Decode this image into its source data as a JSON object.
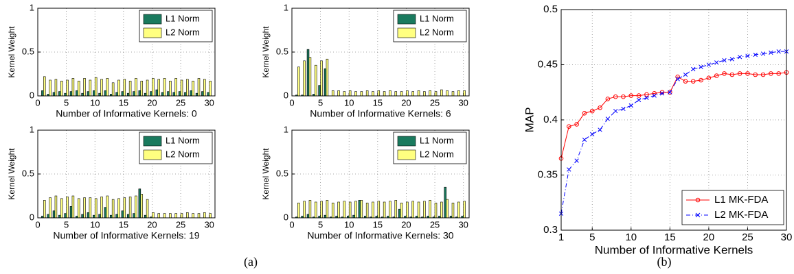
{
  "captions": [
    "(a)",
    "(b)"
  ],
  "chart_data": [
    {
      "type": "bar",
      "xlabel": "Number of Informative Kernels: 0",
      "ylabel": "Kernel Weight",
      "x": [
        1,
        2,
        3,
        4,
        5,
        6,
        7,
        8,
        9,
        10,
        11,
        12,
        13,
        14,
        15,
        16,
        17,
        18,
        19,
        20,
        21,
        22,
        23,
        24,
        25,
        26,
        27,
        28,
        29,
        30
      ],
      "xlim": [
        0,
        31
      ],
      "xticks": [
        0,
        5,
        10,
        15,
        20,
        25,
        30
      ],
      "ylim": [
        0,
        1
      ],
      "yticks": [
        0,
        0.5,
        1
      ],
      "grid": true,
      "legend": "upper right",
      "series": [
        {
          "name": "L1 Norm",
          "color": "#1a7a5e",
          "values": [
            0.06,
            0.02,
            0.04,
            0.05,
            0.03,
            0.05,
            0.06,
            0.03,
            0.05,
            0.06,
            0.03,
            0.06,
            0.02,
            0.04,
            0.05,
            0.03,
            0.05,
            0.06,
            0.03,
            0.05,
            0.07,
            0.04,
            0.05,
            0.04,
            0.05,
            0.04,
            0.06,
            0.03,
            0.05,
            0.04
          ]
        },
        {
          "name": "L2 Norm",
          "color": "#ffff80",
          "values": [
            0.22,
            0.18,
            0.19,
            0.17,
            0.18,
            0.2,
            0.17,
            0.2,
            0.18,
            0.21,
            0.19,
            0.2,
            0.15,
            0.18,
            0.19,
            0.17,
            0.2,
            0.17,
            0.18,
            0.2,
            0.19,
            0.2,
            0.17,
            0.2,
            0.18,
            0.19,
            0.17,
            0.2,
            0.19,
            0.17
          ]
        }
      ]
    },
    {
      "type": "bar",
      "xlabel": "Number of Informative Kernels: 6",
      "ylabel": "Kernel Weight",
      "x": [
        1,
        2,
        3,
        4,
        5,
        6,
        7,
        8,
        9,
        10,
        11,
        12,
        13,
        14,
        15,
        16,
        17,
        18,
        19,
        20,
        21,
        22,
        23,
        24,
        25,
        26,
        27,
        28,
        29,
        30
      ],
      "xlim": [
        0,
        31
      ],
      "xticks": [
        0,
        5,
        10,
        15,
        20,
        25,
        30
      ],
      "ylim": [
        0,
        1
      ],
      "yticks": [
        0,
        0.5,
        1
      ],
      "grid": true,
      "legend": "upper right",
      "series": [
        {
          "name": "L1 Norm",
          "color": "#1a7a5e",
          "values": [
            0.01,
            0.01,
            0.53,
            0.02,
            0.12,
            0.31,
            0,
            0,
            0,
            0,
            0,
            0,
            0,
            0,
            0,
            0,
            0,
            0,
            0,
            0,
            0,
            0,
            0,
            0,
            0,
            0,
            0,
            0,
            0,
            0
          ]
        },
        {
          "name": "L2 Norm",
          "color": "#ffff80",
          "values": [
            0.33,
            0.4,
            0.44,
            0.35,
            0.4,
            0.42,
            0.06,
            0.06,
            0.05,
            0.06,
            0.05,
            0.05,
            0.06,
            0.05,
            0.06,
            0.05,
            0.06,
            0.05,
            0.05,
            0.06,
            0.05,
            0.06,
            0.05,
            0.06,
            0.05,
            0.07,
            0.06,
            0.05,
            0.06,
            0.06
          ]
        }
      ]
    },
    {
      "type": "bar",
      "xlabel": "Number of Informative Kernels: 19",
      "ylabel": "Kernel Weight",
      "x": [
        1,
        2,
        3,
        4,
        5,
        6,
        7,
        8,
        9,
        10,
        11,
        12,
        13,
        14,
        15,
        16,
        17,
        18,
        19,
        20,
        21,
        22,
        23,
        24,
        25,
        26,
        27,
        28,
        29,
        30
      ],
      "xlim": [
        0,
        31
      ],
      "xticks": [
        0,
        5,
        10,
        15,
        20,
        25,
        30
      ],
      "ylim": [
        0,
        1
      ],
      "yticks": [
        0,
        0.5,
        1
      ],
      "grid": true,
      "legend": "upper right",
      "series": [
        {
          "name": "L1 Norm",
          "color": "#1a7a5e",
          "values": [
            0.02,
            0.04,
            0.08,
            0.03,
            0.05,
            0.13,
            0.02,
            0.04,
            0.06,
            0.03,
            0.04,
            0.12,
            0.03,
            0.04,
            0.08,
            0.04,
            0.05,
            0.33,
            0.03,
            0.01,
            0,
            0,
            0,
            0,
            0,
            0,
            0,
            0,
            0,
            0
          ]
        },
        {
          "name": "L2 Norm",
          "color": "#ffff80",
          "values": [
            0.2,
            0.23,
            0.25,
            0.22,
            0.24,
            0.25,
            0.22,
            0.23,
            0.23,
            0.22,
            0.24,
            0.25,
            0.21,
            0.22,
            0.23,
            0.24,
            0.25,
            0.27,
            0.21,
            0.06,
            0.05,
            0.05,
            0.05,
            0.05,
            0.05,
            0.06,
            0.05,
            0.05,
            0.06,
            0.05
          ]
        }
      ]
    },
    {
      "type": "bar",
      "xlabel": "Number of Informative Kernels: 30",
      "ylabel": "Kernel Weight",
      "x": [
        1,
        2,
        3,
        4,
        5,
        6,
        7,
        8,
        9,
        10,
        11,
        12,
        13,
        14,
        15,
        16,
        17,
        18,
        19,
        20,
        21,
        22,
        23,
        24,
        25,
        26,
        27,
        28,
        29,
        30
      ],
      "xlim": [
        0,
        31
      ],
      "xticks": [
        0,
        5,
        10,
        15,
        20,
        25,
        30
      ],
      "ylim": [
        0,
        1
      ],
      "yticks": [
        0,
        0.5,
        1
      ],
      "grid": true,
      "legend": "upper right",
      "series": [
        {
          "name": "L1 Norm",
          "color": "#1a7a5e",
          "values": [
            0.01,
            0.02,
            0.04,
            0.01,
            0.02,
            0.03,
            0.01,
            0.02,
            0.01,
            0.02,
            0.03,
            0.2,
            0.02,
            0.01,
            0.02,
            0.01,
            0.02,
            0.01,
            0.1,
            0.02,
            0.01,
            0.02,
            0.01,
            0.02,
            0.01,
            0.02,
            0.35,
            0.02,
            0.01,
            0.02
          ]
        },
        {
          "name": "L2 Norm",
          "color": "#ffff80",
          "values": [
            0.17,
            0.19,
            0.2,
            0.18,
            0.19,
            0.2,
            0.17,
            0.18,
            0.19,
            0.18,
            0.19,
            0.2,
            0.17,
            0.18,
            0.19,
            0.18,
            0.19,
            0.2,
            0.17,
            0.18,
            0.19,
            0.18,
            0.19,
            0.2,
            0.17,
            0.18,
            0.21,
            0.17,
            0.18,
            0.19
          ]
        }
      ]
    },
    {
      "type": "line",
      "xlabel": "Number of Informative Kernels",
      "ylabel": "MAP",
      "x": [
        1,
        2,
        3,
        4,
        5,
        6,
        7,
        8,
        9,
        10,
        11,
        12,
        13,
        14,
        15,
        16,
        17,
        18,
        19,
        20,
        21,
        22,
        23,
        24,
        25,
        26,
        27,
        28,
        29,
        30
      ],
      "xlim": [
        1,
        30
      ],
      "xticks": [
        1,
        5,
        10,
        15,
        20,
        25,
        30
      ],
      "ylim": [
        0.3,
        0.5
      ],
      "yticks": [
        0.3,
        0.35,
        0.4,
        0.45,
        0.5
      ],
      "grid": true,
      "legend": "lower right",
      "series": [
        {
          "name": "L1 MK-FDA",
          "color": "#ff0000",
          "marker": "o",
          "linestyle": "solid",
          "values": [
            0.365,
            0.394,
            0.396,
            0.406,
            0.408,
            0.411,
            0.419,
            0.421,
            0.421,
            0.422,
            0.422,
            0.423,
            0.424,
            0.425,
            0.425,
            0.439,
            0.435,
            0.435,
            0.436,
            0.438,
            0.44,
            0.442,
            0.441,
            0.442,
            0.442,
            0.441,
            0.441,
            0.442,
            0.442,
            0.443
          ]
        },
        {
          "name": "L2 MK-FDA",
          "color": "#0000ff",
          "marker": "x",
          "linestyle": "dashdot",
          "values": [
            0.315,
            0.355,
            0.363,
            0.382,
            0.387,
            0.391,
            0.401,
            0.408,
            0.41,
            0.413,
            0.418,
            0.42,
            0.422,
            0.424,
            0.425,
            0.437,
            0.441,
            0.446,
            0.448,
            0.45,
            0.452,
            0.454,
            0.455,
            0.457,
            0.458,
            0.459,
            0.46,
            0.461,
            0.462,
            0.462
          ]
        }
      ]
    }
  ]
}
